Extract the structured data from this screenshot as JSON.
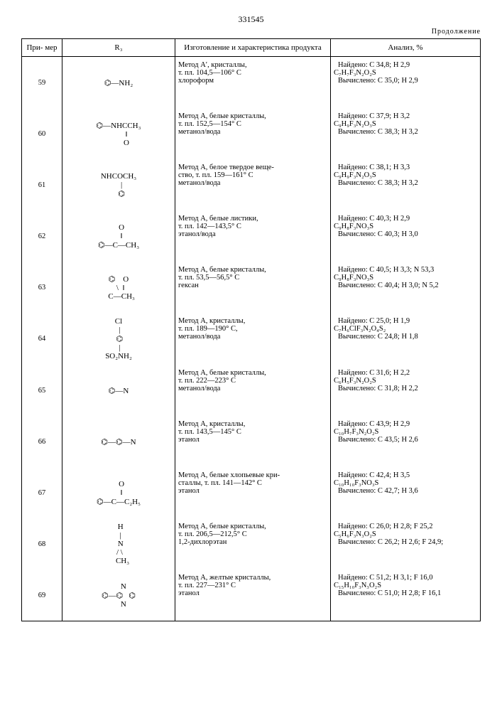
{
  "page_number": "331545",
  "continuation": "Продолжение",
  "headers": {
    "example": "При-\nмер",
    "r3": "R₃",
    "prep": "Изготовление и характеристика\nпродукта",
    "analysis": "Анализ, %"
  },
  "rows": [
    {
      "n": "59",
      "r3": "⌬—NH₂",
      "prep": "Метод A′, кристаллы,\nт. пл. 104,5—106° C\nхлороформ",
      "found": "Найдено: C 34,8;  H 2,9",
      "formula": "C₇H₇F₃N₂O₂S",
      "calc": "Вычислено: C 35,0;  H 2,9"
    },
    {
      "n": "60",
      "r3": "⌬—NHCCH₃\n        ‖\n        O",
      "prep": "Метод A, белые кристаллы,\nт. пл. 152,5—154° C\nметанол/вода",
      "found": "Найдено: C 37,9;  H 3,2",
      "formula": "C₉H₉F₃N₂O₃S",
      "calc": "Вычислено: C 38,3;  H 3,2"
    },
    {
      "n": "61",
      "r3": "NHCOCH₃\n   |\n   ⌬",
      "prep": "Метод A, белое твердое веще-\nство, т. пл. 159—161° C\nметанол/вода",
      "found": "Найдено: C 38,1;  H 3,3",
      "formula": "C₉H₉F₃N₂O₃S",
      "calc": "Вычислено: C 38,3;  H 3,2"
    },
    {
      "n": "62",
      "r3": "   O\n   ‖\n⌬—C—CH₃",
      "prep": "Метод A, белые листики,\nт. пл. 142—143,5° C\nэтанол/вода",
      "found": "Найдено: C 40,3;  H 2,9",
      "formula": "C₉H₈F₃NO₃S",
      "calc": "Вычислено: C 40,3;  H 3,0"
    },
    {
      "n": "63",
      "r3": "⌬    O\n  \\  ‖\n   C—CH₃",
      "prep": "Метод A, белые кристаллы,\nт. пл. 53,5—56,5° C\nгексан",
      "found": "Найдено: C 40,5;  H 3,3;  N 53,3",
      "formula": "C₉H₈F₃NO₃S",
      "calc": "Вычислено: C 40,4;  H 3,0;  N 5,2"
    },
    {
      "n": "64",
      "r3": "Cl\n |\n ⌬\n |\nSO₂NH₂",
      "prep": "Метод A, кристаллы,\nт. пл. 189—190° C,\nметанол/вода",
      "found": "Найдено: C 25,0;  H 1,9",
      "formula": "C₇H₆ClF₃N₂O₄S₂",
      "calc": "Вычислено: C 24,8;  H 1,8"
    },
    {
      "n": "65",
      "r3": "⌬—N",
      "prep": "Метод A, белые кристаллы,\nт. пл. 222—223° C\nметанол/вода",
      "found": "Найдено: C 31,6;  H 2,2",
      "formula": "C₆H₅F₃N₂O₂S",
      "calc": "Вычислено: C 31,8;  H 2,2"
    },
    {
      "n": "66",
      "r3": "⌬—⌬—N",
      "prep": "Метод A, кристаллы,\nт. пл. 143,5—145° C\nэтанол",
      "found": "Найдено: C 43,9;  H 2,9",
      "formula": "C₁₀H₇F₃N₂O₂S",
      "calc": "Вычислено: C 43,5;  H 2,6"
    },
    {
      "n": "67",
      "r3": "   O\n   ‖\n⌬—C—C₂H₅",
      "prep": "Метод A, белые хлопьевые кри-\nсталлы, т. пл. 141—142° C\nэтанол",
      "found": "Найдено: C 42,4;  H 3,5",
      "formula": "C₁₀H₁₀F₃NO₃S",
      "calc": "Вычислено: C 42,7;  H 3,6"
    },
    {
      "n": "68",
      "r3": "  H\n  |\n  N\n / \\\n    CH₃",
      "prep": "Метод A, белые кристаллы,\nт. пл. 206,5—212,5° C\n1,2-дихлорэтан",
      "found": "Найдено: C 26,0;  H 2,8;  F 25,2",
      "formula": "C₅H₆F₃N₃O₂S",
      "calc": "Вычислено: C 26,2;  H 2,6;  F 24,9;"
    },
    {
      "n": "69",
      "r3": "     N\n⌬—⌬   ⌬\n     N",
      "prep": "Метод A, желтые кристаллы,\nт. пл. 227—231° C\nэтанол",
      "found": "Найдено: C 51,2;  H 3,1;  F 16,0",
      "formula": "C₁₅H₁₀F₃N₃O₂S",
      "calc": "Вычислено: C 51,0;  H 2,8;  F 16,1"
    }
  ]
}
